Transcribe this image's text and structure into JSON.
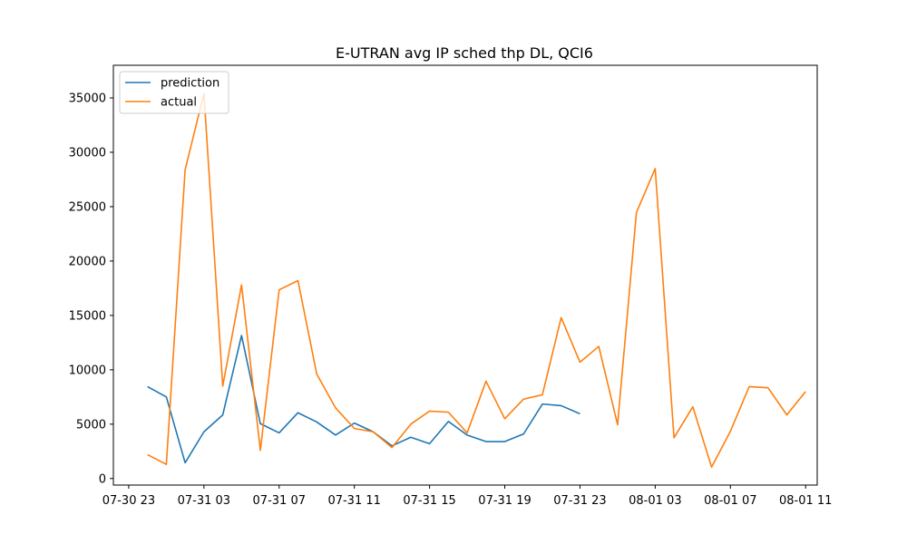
{
  "chart_data": {
    "type": "line",
    "title": "E-UTRAN avg IP sched thp DL, QCI6",
    "xlabel": "",
    "ylabel": "",
    "x_ticks": [
      "07-30 23",
      "07-31 03",
      "07-31 07",
      "07-31 11",
      "07-31 15",
      "07-31 19",
      "07-31 23",
      "08-01 03",
      "08-01 07",
      "08-01 11"
    ],
    "xlim": [
      "07-30 22:11",
      "08-01 11:37"
    ],
    "y_ticks": [
      0,
      5000,
      10000,
      15000,
      20000,
      25000,
      30000,
      35000
    ],
    "ylim": [
      -600,
      38000
    ],
    "grid": false,
    "legend": {
      "position": "top-left"
    },
    "series": [
      {
        "name": "prediction",
        "color": "#1f77b4",
        "x": [
          "07-31 00",
          "07-31 01",
          "07-31 02",
          "07-31 03",
          "07-31 04",
          "07-31 05",
          "07-31 06",
          "07-31 07",
          "07-31 08",
          "07-31 09",
          "07-31 10",
          "07-31 11",
          "07-31 12",
          "07-31 13",
          "07-31 14",
          "07-31 15",
          "07-31 16",
          "07-31 17",
          "07-31 18",
          "07-31 19",
          "07-31 20",
          "07-31 21",
          "07-31 22",
          "07-31 23"
        ],
        "values": [
          8450,
          7500,
          1450,
          4300,
          5850,
          13150,
          5050,
          4200,
          6050,
          5200,
          4000,
          5100,
          4300,
          3000,
          3800,
          3200,
          5250,
          4000,
          3400,
          3400,
          4100,
          6850,
          6700,
          5950
        ]
      },
      {
        "name": "actual",
        "color": "#ff7f0e",
        "x": [
          "07-31 00",
          "07-31 01",
          "07-31 02",
          "07-31 03",
          "07-31 04",
          "07-31 05",
          "07-31 06",
          "07-31 07",
          "07-31 08",
          "07-31 09",
          "07-31 10",
          "07-31 11",
          "07-31 12",
          "07-31 13",
          "07-31 14",
          "07-31 15",
          "07-31 16",
          "07-31 17",
          "07-31 18",
          "07-31 19",
          "07-31 20",
          "07-31 21",
          "07-31 22",
          "07-31 23",
          "08-01 00",
          "08-01 01",
          "08-01 02",
          "08-01 03",
          "08-01 04",
          "08-01 05",
          "08-01 06",
          "08-01 07",
          "08-01 08",
          "08-01 09",
          "08-01 10",
          "08-01 11"
        ],
        "values": [
          2200,
          1300,
          28400,
          35400,
          8500,
          17800,
          2600,
          17350,
          18200,
          9600,
          6500,
          4600,
          4300,
          2850,
          5000,
          6200,
          6100,
          4200,
          8950,
          5500,
          7300,
          7700,
          14800,
          10700,
          12150,
          4950,
          24450,
          28500,
          3750,
          6600,
          1050,
          4350,
          8450,
          8350,
          5850,
          8000
        ]
      }
    ]
  }
}
